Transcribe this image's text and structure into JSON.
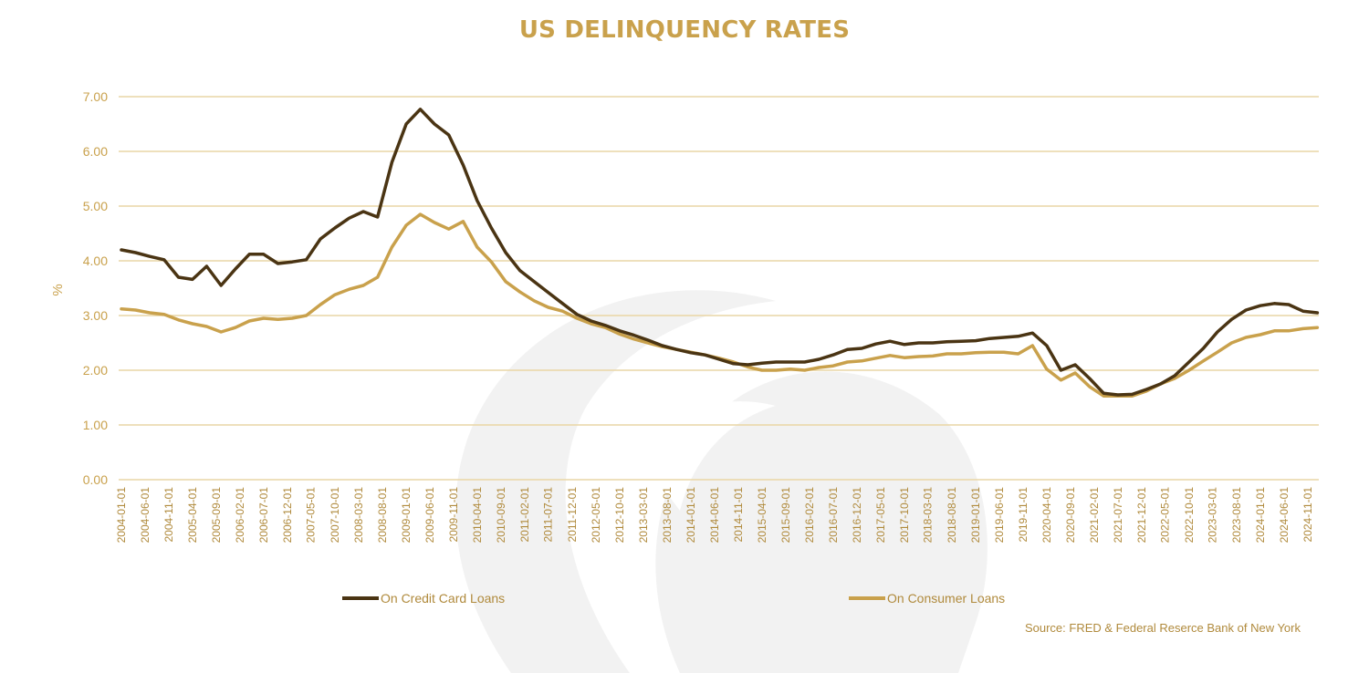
{
  "chart_data": {
    "type": "line",
    "title": "US DELINQUENCY RATES",
    "ylabel": "%",
    "xlabel": "",
    "ylim": [
      0,
      7
    ],
    "yticks": [
      "0.00",
      "1.00",
      "2.00",
      "3.00",
      "4.00",
      "5.00",
      "6.00",
      "7.00"
    ],
    "x_tick_labels": [
      "2004-01-01",
      "2004-06-01",
      "2004-11-01",
      "2005-04-01",
      "2005-09-01",
      "2006-02-01",
      "2006-07-01",
      "2006-12-01",
      "2007-05-01",
      "2007-10-01",
      "2008-03-01",
      "2008-08-01",
      "2009-01-01",
      "2009-06-01",
      "2009-11-01",
      "2010-04-01",
      "2010-09-01",
      "2011-02-01",
      "2011-07-01",
      "2011-12-01",
      "2012-05-01",
      "2012-10-01",
      "2013-03-01",
      "2013-08-01",
      "2014-01-01",
      "2014-06-01",
      "2014-11-01",
      "2015-04-01",
      "2015-09-01",
      "2016-02-01",
      "2016-07-01",
      "2016-12-01",
      "2017-05-01",
      "2017-10-01",
      "2018-03-01",
      "2018-08-01",
      "2019-01-01",
      "2019-06-01",
      "2019-11-01",
      "2020-04-01",
      "2020-09-01",
      "2021-02-01",
      "2021-07-01",
      "2021-12-01",
      "2022-05-01",
      "2022-10-01",
      "2023-03-01",
      "2023-08-01",
      "2024-01-01",
      "2024-06-01",
      "2024-11-01"
    ],
    "x": [
      "2004-01-01",
      "2004-04-01",
      "2004-07-01",
      "2004-10-01",
      "2005-01-01",
      "2005-04-01",
      "2005-07-01",
      "2005-10-01",
      "2006-01-01",
      "2006-04-01",
      "2006-07-01",
      "2006-10-01",
      "2007-01-01",
      "2007-04-01",
      "2007-07-01",
      "2007-10-01",
      "2008-01-01",
      "2008-04-01",
      "2008-07-01",
      "2008-10-01",
      "2009-01-01",
      "2009-04-01",
      "2009-07-01",
      "2009-10-01",
      "2010-01-01",
      "2010-04-01",
      "2010-07-01",
      "2010-10-01",
      "2011-01-01",
      "2011-04-01",
      "2011-07-01",
      "2011-10-01",
      "2012-01-01",
      "2012-04-01",
      "2012-07-01",
      "2012-10-01",
      "2013-01-01",
      "2013-04-01",
      "2013-07-01",
      "2013-10-01",
      "2014-01-01",
      "2014-04-01",
      "2014-07-01",
      "2014-10-01",
      "2015-01-01",
      "2015-04-01",
      "2015-07-01",
      "2015-10-01",
      "2016-01-01",
      "2016-04-01",
      "2016-07-01",
      "2016-10-01",
      "2017-01-01",
      "2017-04-01",
      "2017-07-01",
      "2017-10-01",
      "2018-01-01",
      "2018-04-01",
      "2018-07-01",
      "2018-10-01",
      "2019-01-01",
      "2019-04-01",
      "2019-07-01",
      "2019-10-01",
      "2020-01-01",
      "2020-04-01",
      "2020-07-01",
      "2020-10-01",
      "2021-01-01",
      "2021-04-01",
      "2021-07-01",
      "2021-10-01",
      "2022-01-01",
      "2022-04-01",
      "2022-07-01",
      "2022-10-01",
      "2023-01-01",
      "2023-04-01",
      "2023-07-01",
      "2023-10-01",
      "2024-01-01",
      "2024-04-01",
      "2024-07-01",
      "2024-10-01",
      "2025-01-01"
    ],
    "series": [
      {
        "name": "On Credit Card Loans",
        "color": "#4a3413",
        "values": [
          4.2,
          4.15,
          4.08,
          4.02,
          3.7,
          3.66,
          3.9,
          3.55,
          3.85,
          4.12,
          4.12,
          3.95,
          3.98,
          4.02,
          4.4,
          4.6,
          4.78,
          4.9,
          4.8,
          5.8,
          6.5,
          6.77,
          6.5,
          6.3,
          5.75,
          5.1,
          4.6,
          4.15,
          3.82,
          3.62,
          3.42,
          3.22,
          3.02,
          2.9,
          2.82,
          2.72,
          2.64,
          2.55,
          2.45,
          2.38,
          2.32,
          2.28,
          2.2,
          2.12,
          2.1,
          2.13,
          2.15,
          2.15,
          2.15,
          2.2,
          2.28,
          2.38,
          2.4,
          2.48,
          2.53,
          2.47,
          2.5,
          2.5,
          2.52,
          2.53,
          2.54,
          2.58,
          2.6,
          2.62,
          2.68,
          2.45,
          2.0,
          2.1,
          1.85,
          1.58,
          1.55,
          1.56,
          1.65,
          1.75,
          1.9,
          2.15,
          2.4,
          2.7,
          2.93,
          3.1,
          3.18,
          3.22,
          3.2,
          3.08,
          3.05
        ]
      },
      {
        "name": "On Consumer Loans",
        "color": "#c9a14c",
        "values": [
          3.12,
          3.1,
          3.05,
          3.02,
          2.92,
          2.85,
          2.8,
          2.7,
          2.78,
          2.9,
          2.95,
          2.93,
          2.95,
          3.0,
          3.2,
          3.38,
          3.48,
          3.55,
          3.7,
          4.25,
          4.65,
          4.85,
          4.7,
          4.58,
          4.72,
          4.25,
          3.98,
          3.62,
          3.43,
          3.27,
          3.15,
          3.08,
          2.95,
          2.85,
          2.78,
          2.66,
          2.57,
          2.5,
          2.43,
          2.38,
          2.33,
          2.28,
          2.22,
          2.15,
          2.06,
          2.0,
          2.0,
          2.02,
          2.0,
          2.05,
          2.08,
          2.15,
          2.17,
          2.22,
          2.27,
          2.23,
          2.25,
          2.26,
          2.3,
          2.3,
          2.32,
          2.33,
          2.33,
          2.3,
          2.45,
          2.02,
          1.82,
          1.95,
          1.7,
          1.53,
          1.53,
          1.53,
          1.62,
          1.75,
          1.85,
          2.0,
          2.17,
          2.33,
          2.5,
          2.6,
          2.65,
          2.72,
          2.72,
          2.76,
          2.78
        ]
      }
    ],
    "grid": true,
    "legend": "bottom",
    "source_note": "Source: FRED & Federal Reserce Bank of New York"
  },
  "colors": {
    "title": "#c9a14c",
    "gridline": "#e9d6a5",
    "axis_text": "#c9a14c",
    "x_tick_text": "#b08a3c",
    "source_text": "#b08a3c",
    "watermark": "#f0f0f0"
  }
}
